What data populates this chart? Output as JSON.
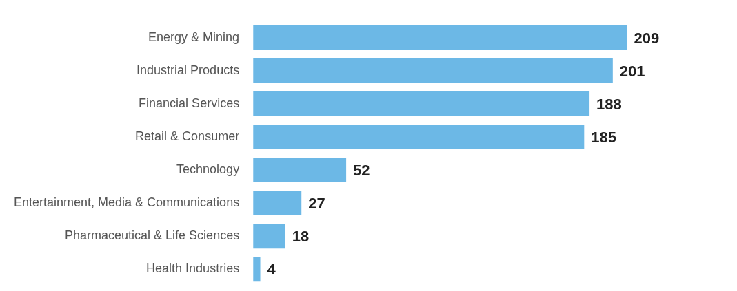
{
  "chart_data": {
    "type": "bar",
    "orientation": "horizontal",
    "categories": [
      "Energy & Mining",
      "Industrial Products",
      "Financial Services",
      "Retail & Consumer",
      "Technology",
      "Entertainment, Media & Communications",
      "Pharmaceutical & Life Sciences",
      "Health Industries"
    ],
    "values": [
      209,
      201,
      188,
      185,
      52,
      27,
      18,
      4
    ],
    "color": "#6cb8e6",
    "data_labels": true
  }
}
